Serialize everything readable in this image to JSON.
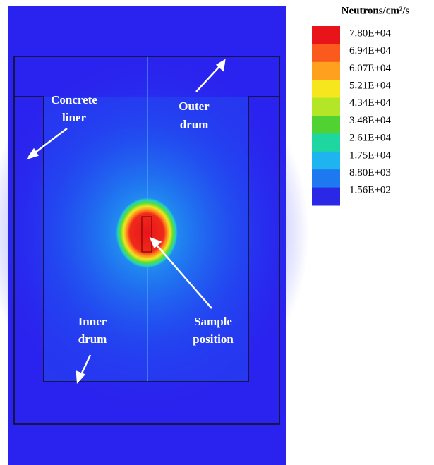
{
  "legend": {
    "title": "Neutrons/cm²/s",
    "labels": [
      "7.80E+04",
      "6.94E+04",
      "6.07E+04",
      "5.21E+04",
      "4.34E+04",
      "3.48E+04",
      "2.61E+04",
      "1.75E+04",
      "8.80E+03",
      "1.56E+02"
    ]
  },
  "annotations": {
    "concrete_liner": [
      "Concrete",
      "liner"
    ],
    "outer_drum": [
      "Outer",
      "drum"
    ],
    "inner_drum": [
      "Inner",
      "drum"
    ],
    "sample_position": [
      "Sample",
      "position"
    ]
  }
}
